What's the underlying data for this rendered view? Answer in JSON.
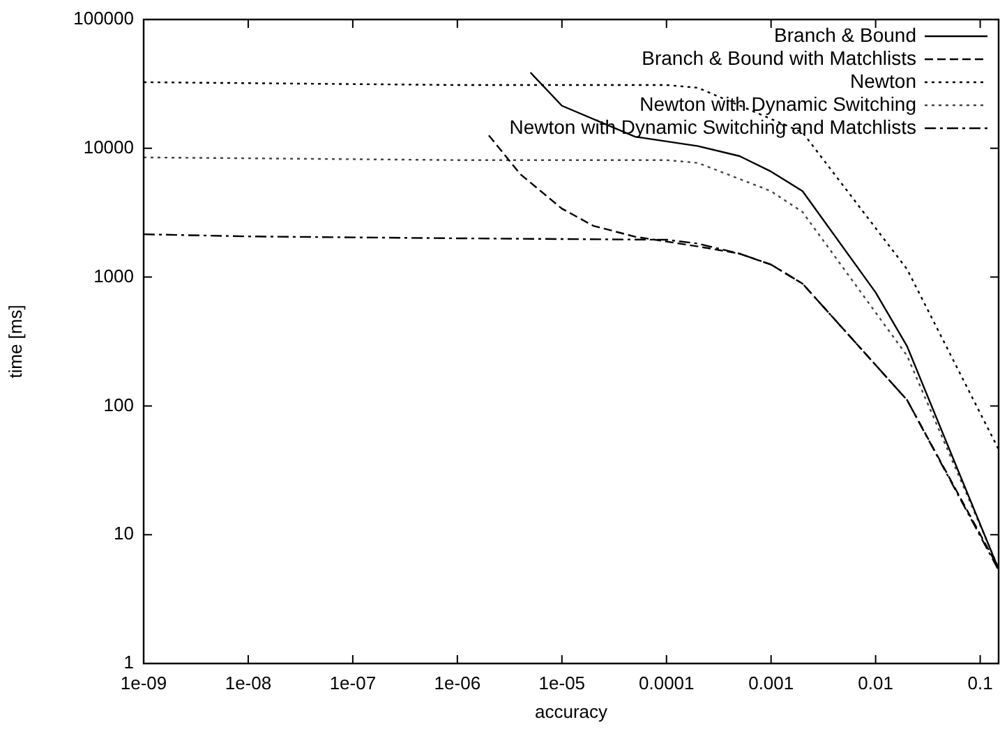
{
  "chart_data": {
    "type": "line",
    "xlabel": "accuracy",
    "ylabel": "time [ms]",
    "log": "xy",
    "grid": false,
    "legend": "top right",
    "marker": "none",
    "xlim": [
      1e-09,
      0.15
    ],
    "xticks": [
      {
        "value": 1e-09,
        "label": "1e-09"
      },
      {
        "value": 1e-08,
        "label": "1e-08"
      },
      {
        "value": 1e-07,
        "label": "1e-07"
      },
      {
        "value": 1e-06,
        "label": "1e-06"
      },
      {
        "value": 1e-05,
        "label": "1e-05"
      },
      {
        "value": 0.0001,
        "label": "0.0001"
      },
      {
        "value": 0.001,
        "label": "0.001"
      },
      {
        "value": 0.01,
        "label": "0.01"
      },
      {
        "value": 0.1,
        "label": "0.1"
      }
    ],
    "ylim": [
      1,
      100000
    ],
    "yticks": [
      1,
      10,
      100,
      1000,
      10000,
      100000
    ],
    "series": [
      {
        "name": "Branch & Bound",
        "color": "#000000",
        "line_style": "solid",
        "x": [
          5e-06,
          1e-05,
          5e-05,
          0.0002,
          0.0005,
          0.001,
          0.002,
          0.01,
          0.02,
          0.15
        ],
        "values": [
          38800,
          21400,
          12300,
          10400,
          8700,
          6600,
          4650,
          760,
          290,
          5.4
        ]
      },
      {
        "name": "Branch & Bound with Matchlists",
        "color": "#000000",
        "line_style": "dashed",
        "x": [
          2e-06,
          4e-06,
          1e-05,
          2e-05,
          5e-05,
          0.0002,
          0.0005,
          0.001,
          0.002,
          0.02,
          0.15
        ],
        "values": [
          12600,
          6300,
          3400,
          2500,
          2060,
          1730,
          1520,
          1250,
          890,
          111,
          5.5
        ]
      },
      {
        "name": "Newton",
        "color": "#000000",
        "line_style": "dotted",
        "x": [
          1e-09,
          1e-06,
          0.0001,
          0.0002,
          0.002,
          0.02,
          0.15
        ],
        "values": [
          32600,
          31000,
          31000,
          29500,
          13300,
          1150,
          46
        ]
      },
      {
        "name": "Newton with Dynamic Switching",
        "color": "#444444",
        "line_style": "dotted",
        "x": [
          1e-09,
          1e-06,
          0.0001,
          0.0002,
          0.001,
          0.002,
          0.02,
          0.15
        ],
        "values": [
          8500,
          8100,
          8100,
          7700,
          4650,
          3200,
          245,
          5.5
        ]
      },
      {
        "name": "Newton with Dynamic Switching and Matchlists",
        "color": "#000000",
        "line_style": "dashdot",
        "x": [
          1e-09,
          1e-08,
          1e-06,
          0.0001,
          0.0002,
          0.0005,
          0.001,
          0.002,
          0.02,
          0.15
        ],
        "values": [
          2150,
          2070,
          2000,
          1950,
          1820,
          1520,
          1250,
          890,
          111,
          5.3
        ]
      }
    ]
  }
}
